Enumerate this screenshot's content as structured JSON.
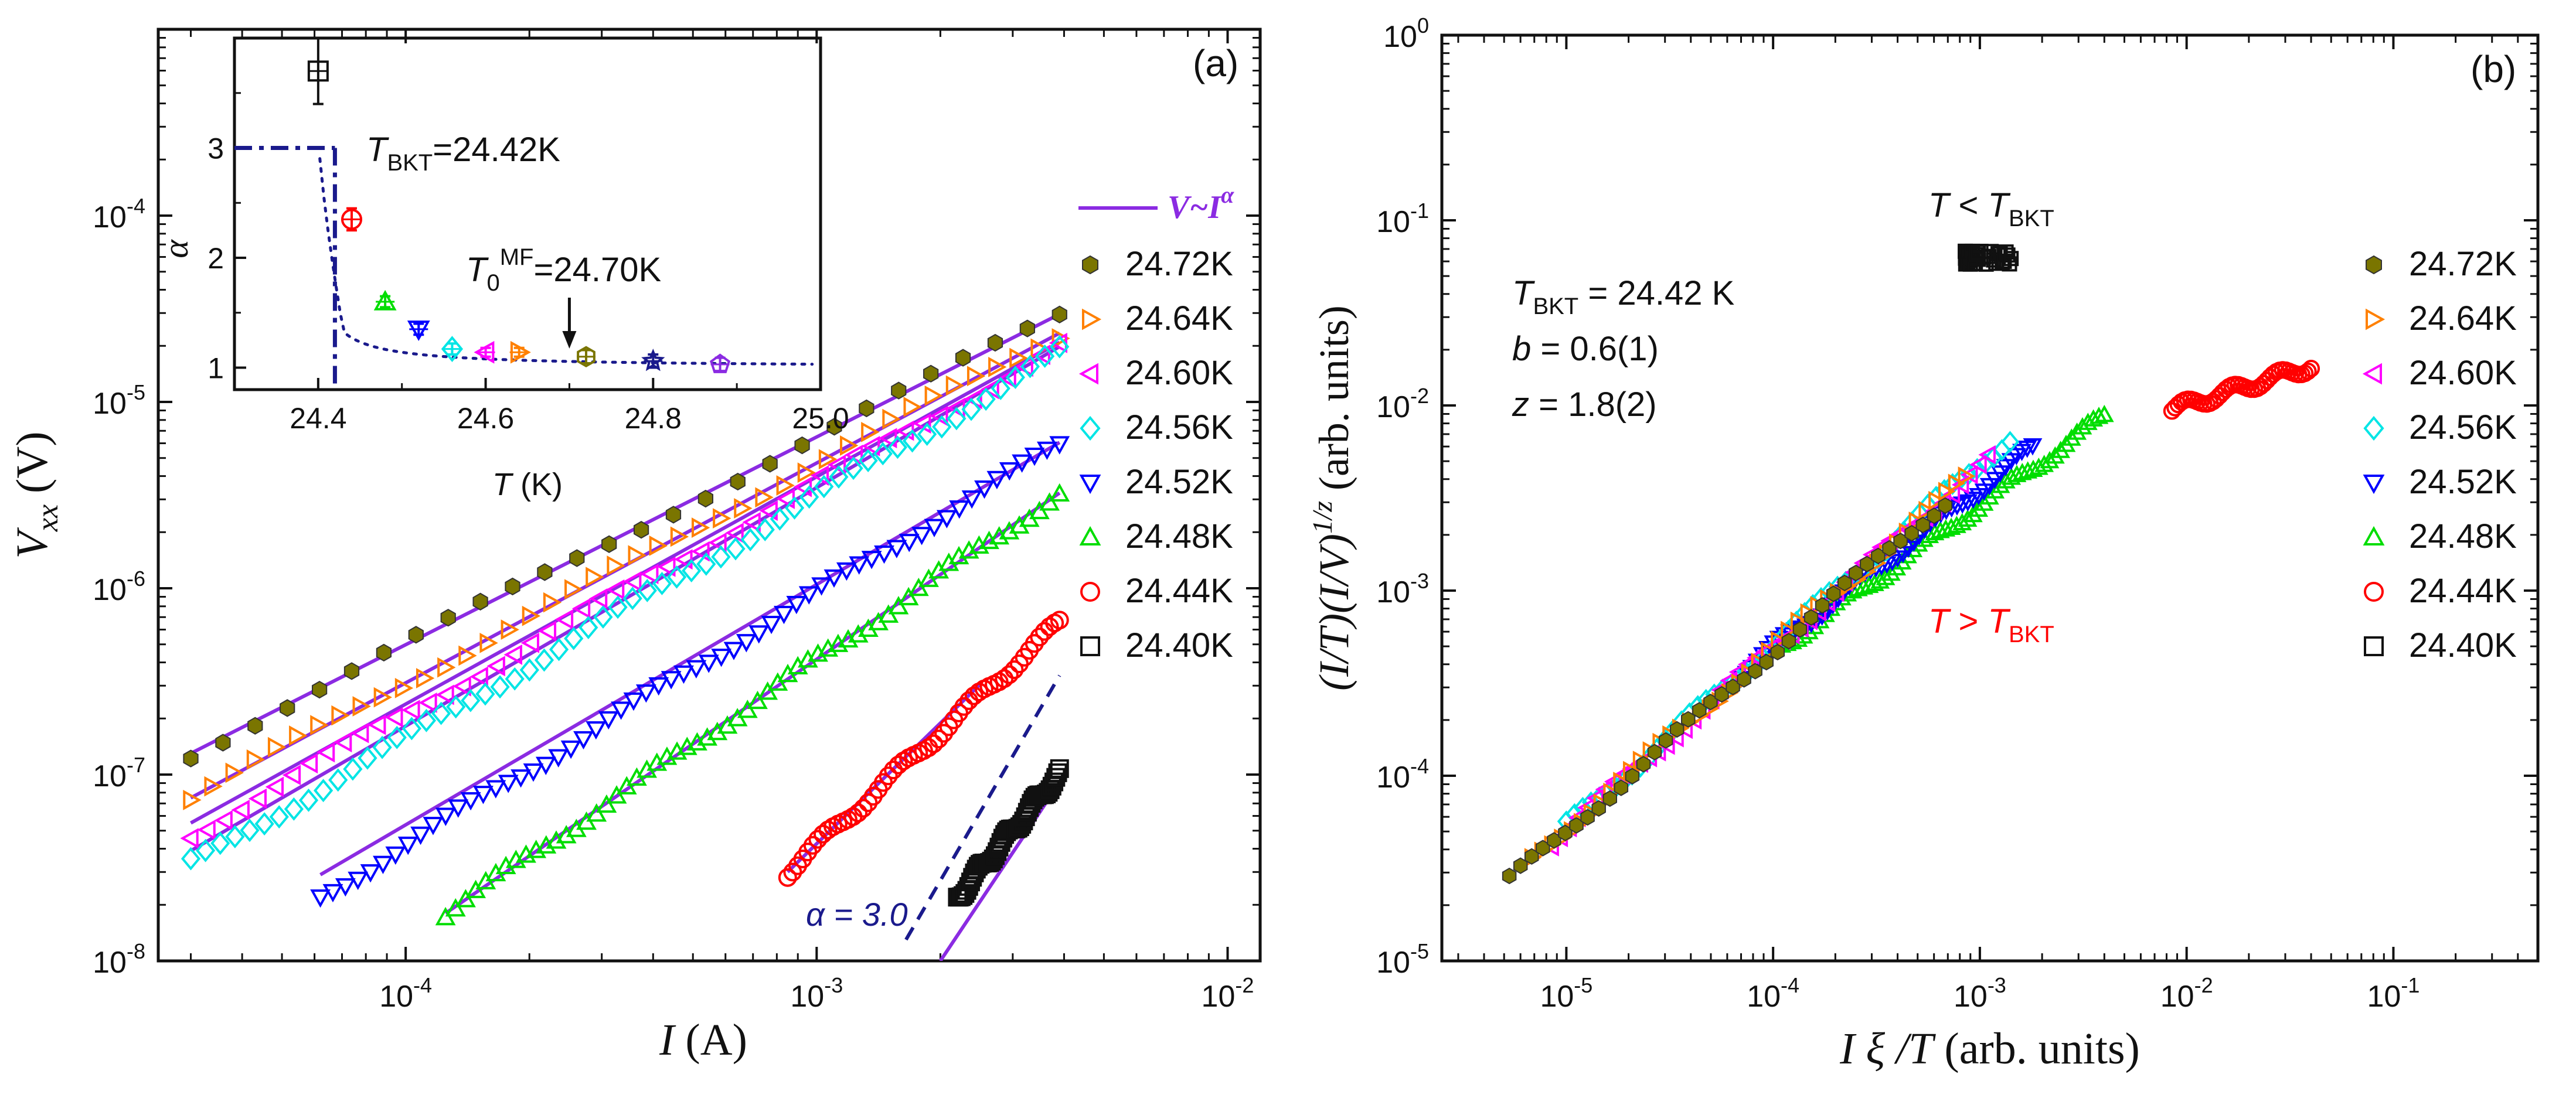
{
  "chart_data": [
    {
      "panel": "(a)",
      "type": "scatter",
      "xscale": "log",
      "yscale": "log",
      "xlim": [
        2.5e-05,
        0.012
      ],
      "ylim": [
        1e-08,
        0.001
      ],
      "xlabel_main": "I",
      "xlabel_unit": " (A)",
      "ylabel_main": "V",
      "ylabel_sub": "xx",
      "ylabel_unit": " (V)",
      "xtick_labels": [
        {
          "value": 0.0001,
          "base": "10",
          "exp": "-4"
        },
        {
          "value": 0.001,
          "base": "10",
          "exp": "-3"
        },
        {
          "value": 0.01,
          "base": "10",
          "exp": "-2"
        }
      ],
      "ytick_labels": [
        {
          "value": 1e-08,
          "base": "10",
          "exp": "-8"
        },
        {
          "value": 1e-07,
          "base": "10",
          "exp": "-7"
        },
        {
          "value": 1e-06,
          "base": "10",
          "exp": "-6"
        },
        {
          "value": 1e-05,
          "base": "10",
          "exp": "-5"
        },
        {
          "value": 0.0001,
          "base": "10",
          "exp": "-4"
        }
      ],
      "fit_legend": {
        "text": "V~I",
        "exp": "α",
        "color": "#8B2BE2"
      },
      "alpha_line": {
        "label": "α = 3.0",
        "color": "#1a1a8c",
        "x0": 0.00165,
        "y0": 1.3e-08,
        "x1": 0.0039,
        "y1": 3.4e-07
      },
      "series": [
        {
          "name": "24.72K",
          "marker": "hexagon-filled",
          "color": "#7A7500",
          "x0": 3e-05,
          "x1": 0.0039,
          "y0": 1.3e-07,
          "slope": 1.115,
          "n": 28
        },
        {
          "name": "24.64K",
          "marker": "triangle-right",
          "color": "#FF8000",
          "x0": 3e-05,
          "x1": 0.0039,
          "y0": 7.5e-08,
          "slope": 1.18,
          "n": 42
        },
        {
          "name": "24.60K",
          "marker": "triangle-left",
          "color": "#FF00FF",
          "x0": 3e-05,
          "x1": 0.0039,
          "y0": 4.8e-08,
          "slope": 1.24,
          "n": 52
        },
        {
          "name": "24.56K",
          "marker": "diamond",
          "color": "#00E5E5",
          "x0": 3e-05,
          "x1": 0.0039,
          "y0": 3.3e-08,
          "slope": 1.3,
          "n": 60
        },
        {
          "name": "24.52K",
          "marker": "triangle-down",
          "color": "#0000FF",
          "x0": 6.2e-05,
          "x1": 0.0039,
          "y0": 2.2e-08,
          "slope": 1.35,
          "n": 60
        },
        {
          "name": "24.48K",
          "marker": "triangle-up",
          "color": "#00DD00",
          "x0": 0.000125,
          "x1": 0.0039,
          "y0": 1.8e-08,
          "slope": 1.51,
          "n": 62
        },
        {
          "name": "24.44K",
          "marker": "circle",
          "color": "#FF0000",
          "x0": 0.00085,
          "x1": 0.0039,
          "y0": 3e-08,
          "slope": 2.02,
          "n": 55
        },
        {
          "name": "24.40K",
          "marker": "square",
          "color": "#111111",
          "x0": 0.0022,
          "x1": 0.0039,
          "y0": 2.2e-08,
          "slope": 2.68,
          "n": 55
        }
      ],
      "fit_lines": [
        {
          "x0": 3e-05,
          "x1": 0.0039,
          "y0": 1.3e-07,
          "slope": 1.115
        },
        {
          "x0": 3e-05,
          "x1": 0.0039,
          "y0": 7.5e-08,
          "slope": 1.18
        },
        {
          "x0": 3e-05,
          "x1": 0.0039,
          "y0": 5.5e-08,
          "slope": 1.22
        },
        {
          "x0": 3e-05,
          "x1": 0.0039,
          "y0": 3.9e-08,
          "slope": 1.28
        },
        {
          "x0": 6.2e-05,
          "x1": 0.0039,
          "y0": 2.9e-08,
          "slope": 1.29
        },
        {
          "x0": 0.000125,
          "x1": 0.0039,
          "y0": 1.8e-08,
          "slope": 1.51
        },
        {
          "x0": 0.00085,
          "x1": 0.0025,
          "y0": 3e-08,
          "slope": 2.15
        },
        {
          "x0": 0.002,
          "x1": 0.0039,
          "y0": 1e-08,
          "slope": 3.3
        }
      ],
      "inset": {
        "xlim": [
          24.3,
          25.0
        ],
        "ylim": [
          0.8,
          4.0
        ],
        "xticks": [
          "24.4",
          "24.6",
          "24.8",
          "25.0"
        ],
        "xtick_values": [
          24.4,
          24.6,
          24.8,
          25.0
        ],
        "yticks": [
          "1",
          "2",
          "3"
        ],
        "ytick_values": [
          1,
          2,
          3
        ],
        "xlabel": "T",
        "xlabel_unit": " (K)",
        "ylabel": "α",
        "tbkt_label": "T",
        "tbkt_sub": "BKT",
        "tbkt_value": "=24.42K",
        "t0_label": "T",
        "t0_sub": "0",
        "t0_sup": "MF",
        "t0_value": "=24.70K",
        "tbkt": 24.42,
        "alpha_star": 3,
        "t0": 24.7,
        "points": [
          {
            "T": 24.4,
            "alpha": 3.7,
            "err": 0.3,
            "color": "#111111",
            "marker": "square"
          },
          {
            "T": 24.44,
            "alpha": 2.35,
            "err": 0.1,
            "color": "#FF0000",
            "marker": "circle"
          },
          {
            "T": 24.48,
            "alpha": 1.6,
            "err": 0.05,
            "color": "#00DD00",
            "marker": "triangle-up"
          },
          {
            "T": 24.52,
            "alpha": 1.35,
            "err": 0.05,
            "color": "#0000FF",
            "marker": "triangle-down"
          },
          {
            "T": 24.56,
            "alpha": 1.17,
            "err": 0.05,
            "color": "#00E5E5",
            "marker": "diamond"
          },
          {
            "T": 24.6,
            "alpha": 1.14,
            "err": 0.04,
            "color": "#FF00FF",
            "marker": "triangle-left"
          },
          {
            "T": 24.64,
            "alpha": 1.14,
            "err": 0.04,
            "color": "#FF8000",
            "marker": "triangle-right"
          },
          {
            "T": 24.72,
            "alpha": 1.1,
            "err": 0.06,
            "color": "#7A7500",
            "marker": "hexagon"
          },
          {
            "T": 24.8,
            "alpha": 1.06,
            "err": 0.06,
            "color": "#1a1a8c",
            "marker": "star"
          },
          {
            "T": 24.88,
            "alpha": 1.03,
            "err": 0.06,
            "color": "#8B2BE2",
            "marker": "pentagon"
          }
        ]
      }
    },
    {
      "panel": "(b)",
      "type": "scatter",
      "xscale": "log",
      "yscale": "log",
      "xlim": [
        2.5e-06,
        0.5
      ],
      "ylim": [
        1e-05,
        1
      ],
      "xlabel_main": "I ξ /T",
      "xlabel_unit": " (arb. units)",
      "ylabel_main": "(I/T)(I/V)",
      "ylabel_sup": "1/z",
      "ylabel_unit": " (arb. units)",
      "xtick_labels": [
        {
          "value": 1e-05,
          "base": "10",
          "exp": "-5"
        },
        {
          "value": 0.0001,
          "base": "10",
          "exp": "-4"
        },
        {
          "value": 0.001,
          "base": "10",
          "exp": "-3"
        },
        {
          "value": 0.01,
          "base": "10",
          "exp": "-2"
        },
        {
          "value": 0.1,
          "base": "10",
          "exp": "-1"
        }
      ],
      "ytick_labels": [
        {
          "value": 1e-05,
          "base": "10",
          "exp": "-5"
        },
        {
          "value": 0.0001,
          "base": "10",
          "exp": "-4"
        },
        {
          "value": 0.001,
          "base": "10",
          "exp": "-3"
        },
        {
          "value": 0.01,
          "base": "10",
          "exp": "-2"
        },
        {
          "value": 0.1,
          "base": "10",
          "exp": "-1"
        },
        {
          "value": 1,
          "base": "10",
          "exp": "0"
        }
      ],
      "annot_below": {
        "t": "T",
        "op": " < ",
        "tb": "T",
        "sub": "BKT"
      },
      "annot_above": {
        "t": "T",
        "op": " > ",
        "tb": "T",
        "sub": "BKT",
        "color": "#FF0000"
      },
      "params": [
        {
          "pre": "T",
          "sub": "BKT",
          "text": " = 24.42 K"
        },
        {
          "pre": "b",
          "sub": "",
          "text": " = 0.6(1)"
        },
        {
          "pre": "z",
          "sub": "",
          "text": " = 1.8(2)"
        }
      ],
      "series": [
        {
          "name": "24.72K",
          "marker": "hexagon-filled",
          "color": "#7A7500",
          "x0": 5.3e-06,
          "x1": 0.00068,
          "y0": 2.7e-05,
          "slope": 0.975,
          "n": 40
        },
        {
          "name": "24.64K",
          "marker": "triangle-right",
          "color": "#FF8000",
          "x0": 6.8e-06,
          "x1": 0.00085,
          "y0": 3.5e-05,
          "slope": 0.98,
          "n": 45
        },
        {
          "name": "24.60K",
          "marker": "triangle-left",
          "color": "#FF00FF",
          "x0": 8.5e-06,
          "x1": 0.0011,
          "y0": 4.4e-05,
          "slope": 0.98,
          "n": 50
        },
        {
          "name": "24.56K",
          "marker": "diamond",
          "color": "#00E5E5",
          "x0": 1e-05,
          "x1": 0.0014,
          "y0": 5.3e-05,
          "slope": 0.98,
          "n": 55
        },
        {
          "name": "24.52K",
          "marker": "triangle-down",
          "color": "#0000FF",
          "x0": 7e-05,
          "x1": 0.0018,
          "y0": 0.00036,
          "slope": 0.86,
          "n": 55
        },
        {
          "name": "24.48K",
          "marker": "triangle-up",
          "color": "#00DD00",
          "x0": 0.00011,
          "x1": 0.004,
          "y0": 0.0005,
          "slope": 0.795,
          "n": 60
        },
        {
          "name": "24.44K",
          "marker": "circle",
          "color": "#FF0000",
          "x0": 0.0085,
          "x1": 0.04,
          "y0": 0.0095,
          "slope": 0.35,
          "n": 45
        },
        {
          "name": "24.40K",
          "marker": "square",
          "color": "#111111",
          "x0": 0.00085,
          "x1": 0.0012,
          "y0": 0.063,
          "slope": 0.0,
          "n": 40
        }
      ]
    }
  ]
}
